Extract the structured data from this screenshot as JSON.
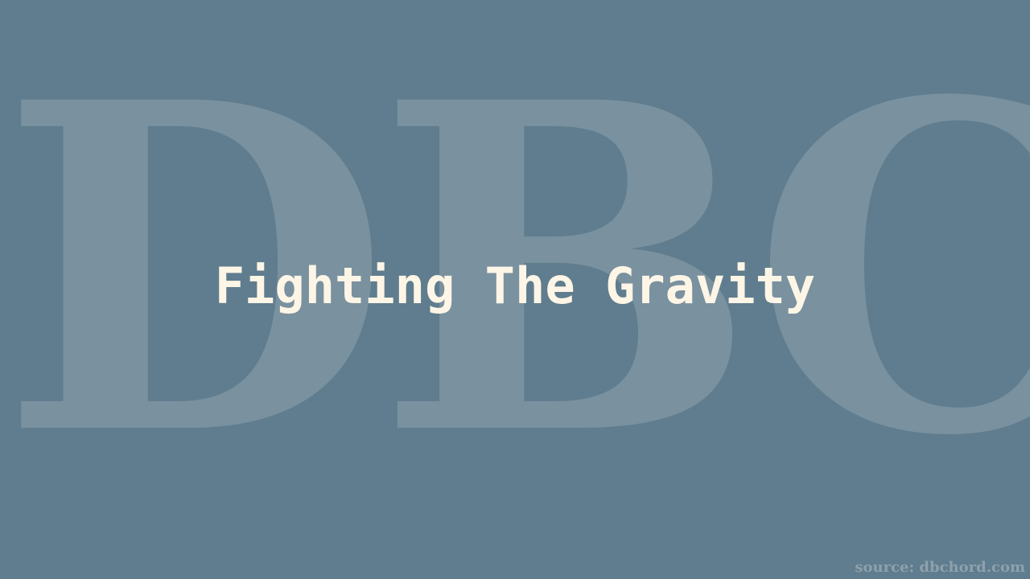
{
  "watermark": {
    "text": "DBC",
    "color": "#7a919f"
  },
  "title": {
    "text": "Fighting The Gravity",
    "color": "#fdf5e6"
  },
  "source": {
    "text": "source: dbchord.com",
    "color": "#8ea1ad"
  },
  "background_color": "#5f7d8e"
}
